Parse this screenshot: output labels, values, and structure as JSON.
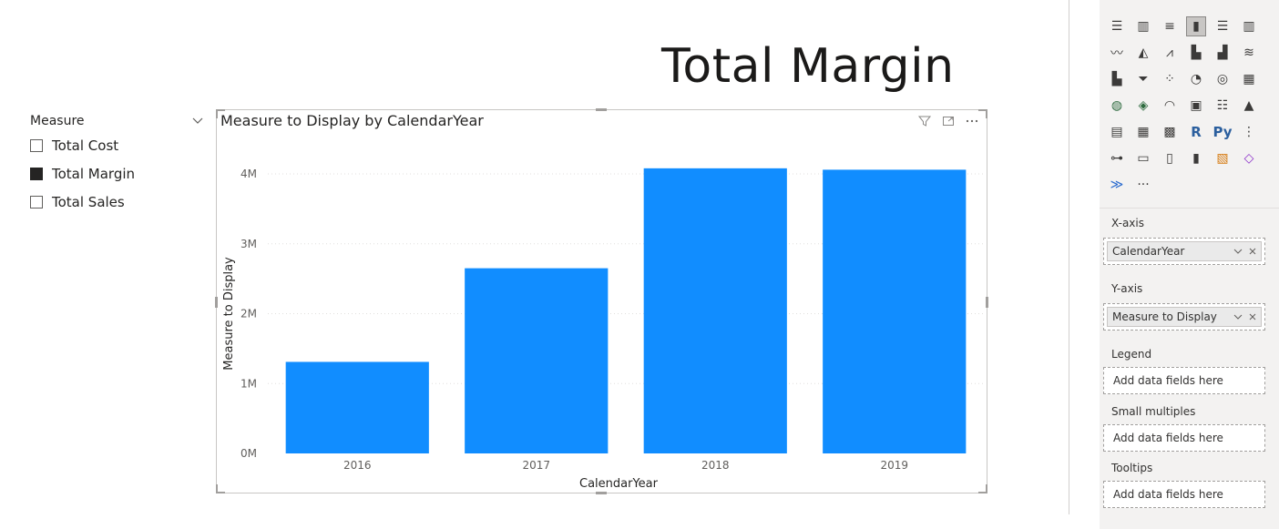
{
  "page_title": "Total Margin",
  "slicer": {
    "title": "Measure",
    "items": [
      {
        "label": "Total Cost",
        "checked": false
      },
      {
        "label": "Total Margin",
        "checked": true
      },
      {
        "label": "Total Sales",
        "checked": false
      }
    ]
  },
  "visual": {
    "title": "Measure to Display by CalendarYear"
  },
  "chart_data": {
    "type": "bar",
    "title": "Measure to Display by CalendarYear",
    "categories": [
      "2016",
      "2017",
      "2018",
      "2019"
    ],
    "series": [
      {
        "values": [
          1.31,
          2.65,
          4.08,
          4.06
        ]
      }
    ],
    "values_unit": "M",
    "xlabel": "CalendarYear",
    "ylabel": "Measure to Display",
    "y_ticks": [
      "0M",
      "1M",
      "2M",
      "3M",
      "4M"
    ],
    "ylim": [
      0,
      4
    ],
    "grid": true,
    "bar_color": "#118DFF"
  },
  "panel": {
    "viz_icons": [
      "stacked-bar-icon",
      "stacked-column-icon",
      "clustered-bar-icon",
      "clustered-column-icon",
      "100-bar-icon",
      "100-column-icon",
      "line-chart-icon",
      "area-chart-icon",
      "stacked-area-icon",
      "line-column-icon",
      "line-clustered-column-icon",
      "ribbon-chart-icon",
      "waterfall-icon",
      "funnel-icon",
      "scatter-icon",
      "pie-icon",
      "donut-icon",
      "treemap-icon",
      "map-icon",
      "filled-map-icon",
      "gauge-icon",
      "card-icon",
      "multirow-card-icon",
      "kpi-icon",
      "slicer-icon",
      "table-icon",
      "matrix-icon",
      "r-visual-icon",
      "python-visual-icon",
      "key-influencers-icon",
      "decomposition-tree-icon",
      "qa-icon",
      "paginated-report-icon",
      "smart-narrative-icon",
      "metrics-icon",
      "power-apps-icon",
      "power-automate-icon",
      "more-icon"
    ],
    "r_label": "R",
    "py_label": "Py",
    "more_label": "···",
    "x_axis_label": "X-axis",
    "x_axis_field": "CalendarYear",
    "y_axis_label": "Y-axis",
    "y_axis_field": "Measure to Display",
    "legend_label": "Legend",
    "legend_placeholder": "Add data fields here",
    "small_multiples_label": "Small multiples",
    "small_multiples_placeholder": "Add data fields here",
    "tooltips_label": "Tooltips",
    "tooltips_placeholder": "Add data fields here"
  }
}
